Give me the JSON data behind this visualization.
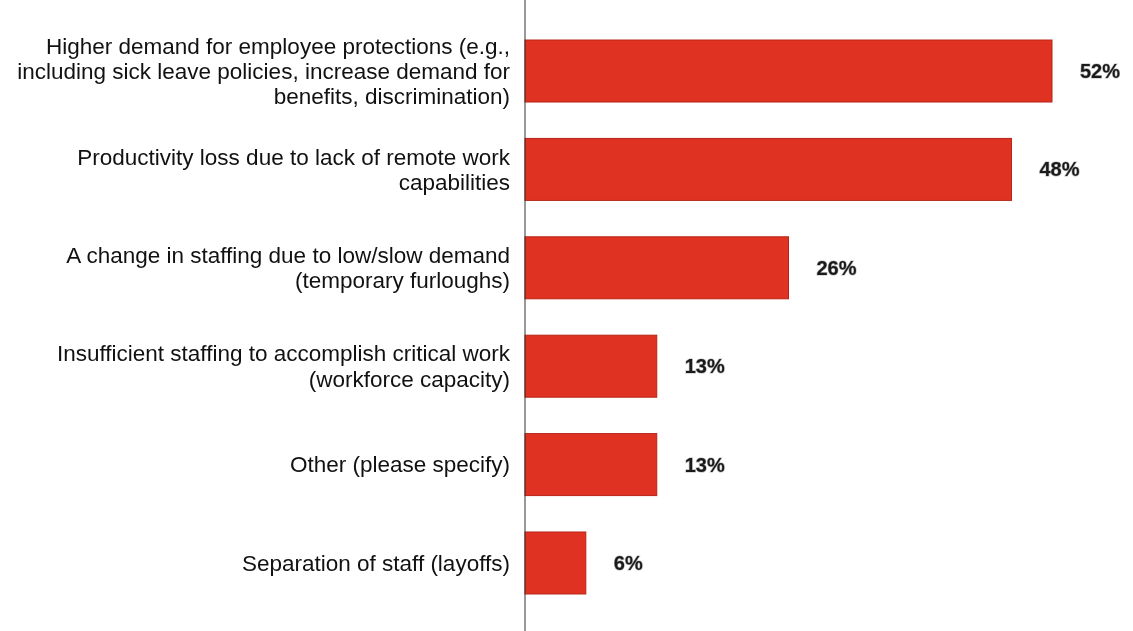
{
  "chart_data": {
    "type": "bar",
    "orientation": "horizontal",
    "categories": [
      "Higher demand for employee protections (e.g., including sick leave policies, increase demand for benefits, discrimination)",
      "Productivity loss due to lack of remote work capabilities",
      "A change in staffing due to low/slow demand (temporary furloughs)",
      "Insufficient staffing to accomplish critical work (workforce capacity)",
      "Other (please specify)",
      "Separation of staff (layoffs)"
    ],
    "values": [
      52,
      48,
      26,
      13,
      13,
      6
    ],
    "value_labels": [
      "52%",
      "48%",
      "26%",
      "13%",
      "13%",
      "6%"
    ],
    "color": "#e03222"
  }
}
